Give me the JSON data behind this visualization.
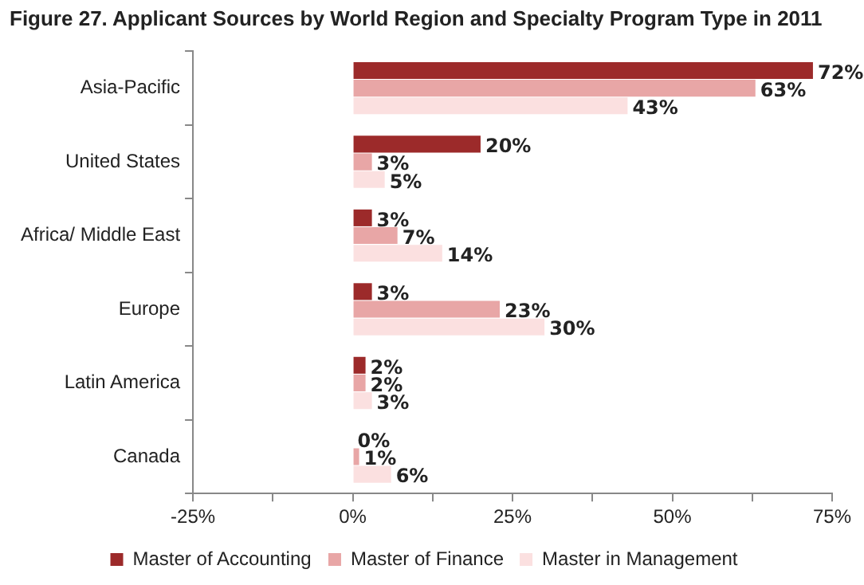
{
  "chart_data": {
    "type": "bar",
    "orientation": "horizontal",
    "title": "Figure 27. Applicant Sources by World Region and Specialty Program Type in 2011",
    "categories": [
      "Asia-Pacific",
      "United States",
      "Africa/ Middle East",
      "Europe",
      "Latin America",
      "Canada"
    ],
    "series": [
      {
        "name": "Master of Accounting",
        "color": "#9c2a2a",
        "values": [
          72,
          20,
          3,
          3,
          2,
          0
        ],
        "value_labels": [
          "72%",
          "20%",
          "3%",
          "3%",
          "2%",
          "0%"
        ]
      },
      {
        "name": "Master of Finance",
        "color": "#e8a6a6",
        "values": [
          63,
          3,
          7,
          23,
          2,
          1
        ],
        "value_labels": [
          "63%",
          "3%",
          "7%",
          "23%",
          "2%",
          "1%"
        ]
      },
      {
        "name": "Master in Management",
        "color": "#fbe0e0",
        "values": [
          43,
          5,
          14,
          30,
          3,
          6
        ],
        "value_labels": [
          "43%",
          "5%",
          "14%",
          "30%",
          "3%",
          "6%"
        ]
      }
    ],
    "xlim": [
      -25,
      75
    ],
    "xticks": [
      {
        "value": -25,
        "label": "-25%"
      },
      {
        "value": -12.5,
        "label": null
      },
      {
        "value": 0,
        "label": "0%"
      },
      {
        "value": 12.5,
        "label": null
      },
      {
        "value": 25,
        "label": "25%"
      },
      {
        "value": 37.5,
        "label": null
      },
      {
        "value": 50,
        "label": "50%"
      },
      {
        "value": 62.5,
        "label": null
      },
      {
        "value": 75,
        "label": "75%"
      }
    ],
    "grid": false,
    "legend": "bottom"
  }
}
